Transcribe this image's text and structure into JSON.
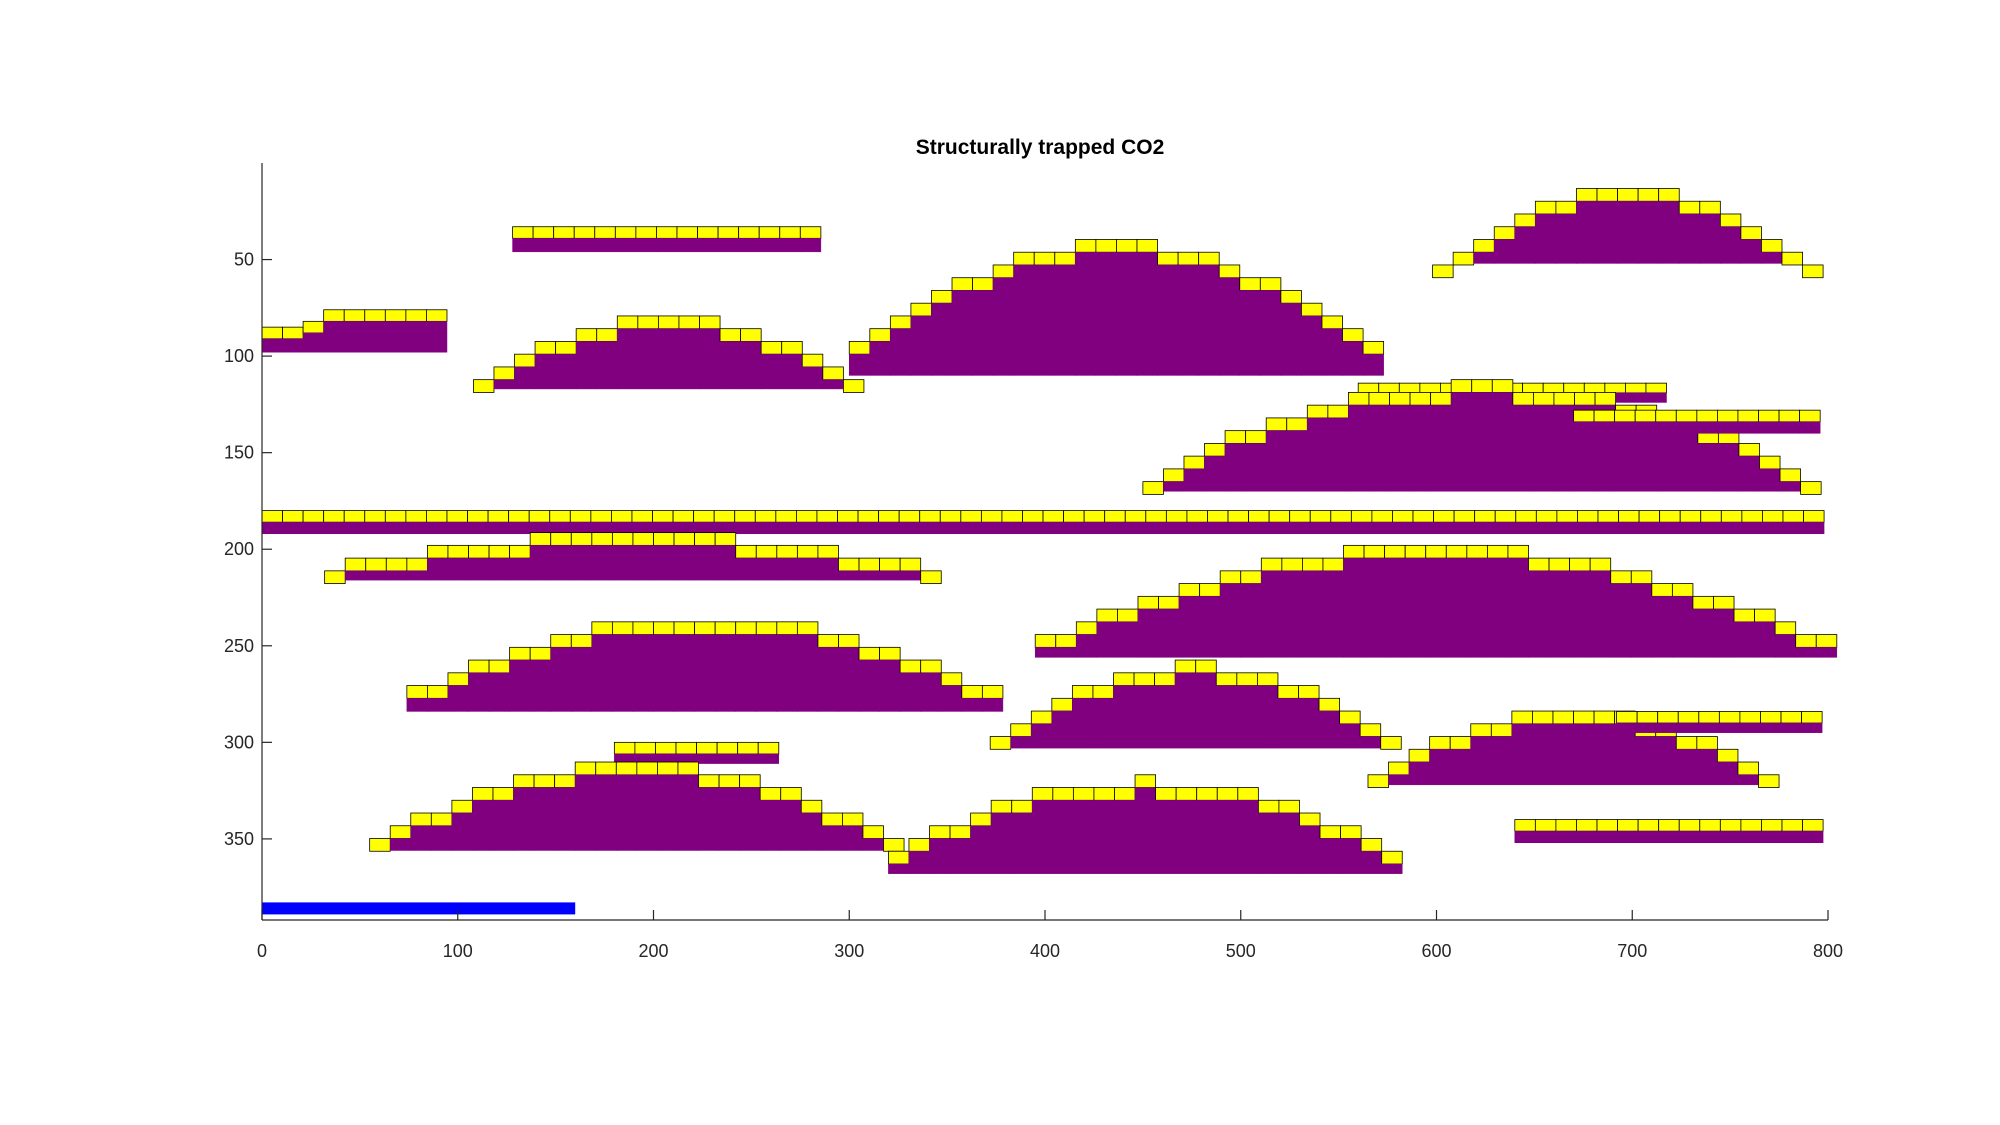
{
  "chart_data": {
    "type": "heatmap",
    "title": "Structurally trapped CO2",
    "xlabel": "",
    "ylabel": "",
    "xlim": [
      0,
      800
    ],
    "ylim": [
      0,
      392
    ],
    "y_reversed": true,
    "cell_width": 10.5,
    "cell_height": 6.6,
    "x_ticks": [
      0,
      100,
      200,
      300,
      400,
      500,
      600,
      700,
      800
    ],
    "y_ticks": [
      50,
      100,
      150,
      200,
      250,
      300,
      350
    ],
    "grid": false,
    "colors": {
      "mobile_layer": "#ffff00",
      "trapped_layer": "#800080",
      "cell_edge": "#000000",
      "scale_bar": "#0000ff",
      "axis": "#262626"
    },
    "traps": [
      {
        "x": [
          0,
          96
        ],
        "top": [
          72,
          72,
          76,
          85,
          91,
          91,
          91,
          91,
          91,
          91,
          91,
          91,
          91,
          91,
          91
        ],
        "mobile": [
          [
            85,
            91
          ],
          [
            85,
            91
          ],
          [
            82,
            88
          ],
          [
            76,
            82
          ],
          [
            76,
            82
          ],
          [
            76,
            82
          ],
          [
            76,
            82
          ],
          [
            76,
            82
          ],
          [
            76,
            82
          ],
          [
            76,
            82
          ],
          [
            82,
            88
          ],
          [
            82,
            88
          ],
          [
            85,
            91
          ],
          [
            85,
            91
          ]
        ],
        "trapped_bottom": 98
      },
      {
        "x": [
          128,
          288
        ],
        "mobile": 33,
        "trapped_top": 39,
        "bottom": 46
      },
      {
        "x": [
          598,
          800
        ],
        "dome": [
          12,
          58
        ],
        "trapped_bottom": 52
      },
      {
        "x": [
          108,
          308
        ],
        "dome": [
          80,
          115
        ],
        "trapped_bottom": 117
      },
      {
        "x": [
          300,
          575
        ],
        "dome": [
          42,
          100
        ],
        "trapped_bottom": 110
      },
      {
        "x": [
          560,
          722
        ],
        "mobile": 114,
        "trapped_top": 119,
        "bottom": 124
      },
      {
        "x": [
          450,
          800
        ],
        "dome": [
          115,
          165
        ],
        "trapped_bottom": 170
      },
      {
        "x": [
          0,
          800
        ],
        "mobile": 180,
        "trapped_top": 186,
        "bottom": 192
      },
      {
        "x": [
          32,
          352
        ],
        "dome": [
          193,
          210
        ],
        "trapped_bottom": 216
      },
      {
        "x": [
          395,
          800
        ],
        "dome": [
          198,
          250
        ],
        "trapped_bottom": 256
      },
      {
        "x": [
          74,
          380
        ],
        "dome": [
          236,
          275
        ],
        "trapped_bottom": 284
      },
      {
        "x": [
          372,
          585
        ],
        "dome": [
          260,
          300
        ],
        "trapped_bottom": 303
      },
      {
        "x": [
          565,
          780
        ],
        "dome": [
          284,
          318
        ],
        "trapped_bottom": 322
      },
      {
        "x": [
          180,
          268
        ],
        "mobile": 300,
        "trapped_top": 306,
        "bottom": 311
      },
      {
        "x": [
          55,
          330
        ],
        "dome": [
          312,
          352
        ],
        "trapped_bottom": 356
      },
      {
        "x": [
          320,
          585
        ],
        "dome": [
          320,
          360
        ],
        "trapped_bottom": 368
      },
      {
        "x": [
          640,
          800
        ],
        "mobile": 340,
        "trapped_top": 346,
        "bottom": 352
      },
      {
        "x": [
          692,
          800
        ],
        "mobile": 284,
        "trapped_top": 290,
        "bottom": 295
      },
      {
        "x": [
          670,
          800
        ],
        "mobile": 128,
        "trapped_top": 134,
        "bottom": 140
      }
    ],
    "scale_bar": {
      "x": [
        0,
        160
      ],
      "y": 386
    }
  }
}
